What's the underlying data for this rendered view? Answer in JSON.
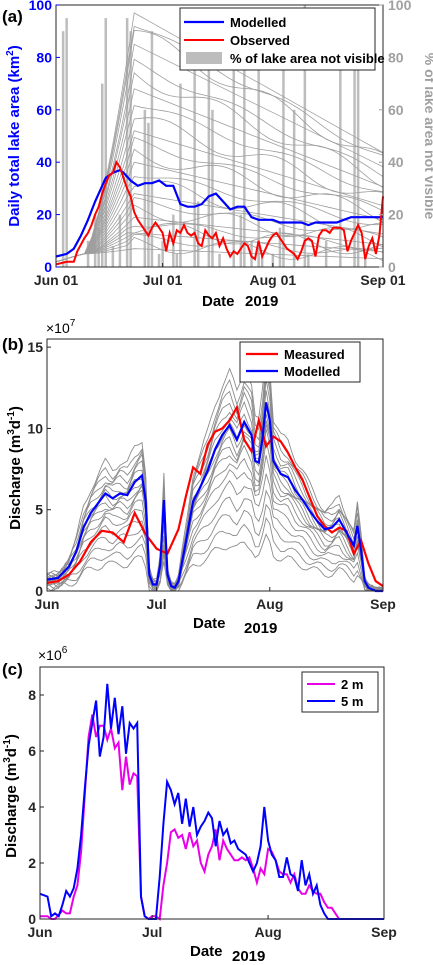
{
  "chart_data": [
    {
      "panel": "(a)",
      "type": "line",
      "xlabel": "Date",
      "xlabel_year": "2019",
      "ylabel": "Daily total lake area (km²)",
      "ylabel_base": "Daily total lake area (km",
      "ylabel_sup": "2",
      "ylabel_close": ")",
      "ylabel_right": "% of lake area not visible",
      "xlim": [
        0,
        92
      ],
      "ylim": [
        0,
        100
      ],
      "ylim_right": [
        0,
        100
      ],
      "xticks": [
        0,
        30,
        61,
        92
      ],
      "xticklabels": [
        "Jun 01",
        "Jul 01",
        "Aug 01",
        "Sep 01"
      ],
      "yticks": [
        0,
        20,
        40,
        60,
        80,
        100
      ],
      "yticklabels": [
        "0",
        "20",
        "40",
        "60",
        "80",
        "100"
      ],
      "yticks_right": [
        0,
        20,
        40,
        60,
        80,
        100
      ],
      "yticklabels_right": [
        "0",
        "20",
        "40",
        "60",
        "80",
        "100"
      ],
      "legend_position": "top-right",
      "colors": {
        "modelled": "#0000ff",
        "observed": "#ff0000",
        "bars": "#bdbdbd",
        "ensemble": "#9e9e9e",
        "left_axis": "#0000ff",
        "right_axis": "#a0a0a0"
      },
      "legend": [
        "Modelled",
        "Observed",
        "% of lake area not visible"
      ],
      "series": [
        {
          "name": "Modelled",
          "x": [
            0,
            3,
            5,
            7,
            9,
            11,
            13,
            14,
            16,
            18,
            19,
            21,
            23,
            25,
            27,
            29,
            31,
            33,
            35,
            37,
            39,
            41,
            43,
            45,
            47,
            49,
            51,
            53,
            55,
            57,
            59,
            61,
            63,
            65,
            67,
            69,
            71,
            73,
            75,
            77,
            79,
            81,
            83,
            85,
            87,
            89,
            91,
            92
          ],
          "y": [
            4,
            5,
            7,
            12,
            18,
            25,
            31,
            34,
            36,
            37,
            36,
            33,
            31,
            32,
            32,
            33,
            31,
            31,
            24,
            23,
            23,
            24,
            27,
            28,
            25,
            22,
            23,
            23,
            19,
            18,
            18,
            18,
            17,
            17,
            17,
            17,
            16,
            17,
            17,
            17,
            17,
            18,
            19,
            19,
            19,
            19,
            19,
            19
          ]
        },
        {
          "name": "Observed",
          "x": [
            0,
            3,
            5,
            6,
            8,
            9,
            10,
            11,
            12,
            13,
            14,
            15,
            16,
            17,
            18,
            19,
            20,
            21,
            22,
            23,
            24,
            25,
            26,
            27,
            28,
            29,
            30,
            31,
            32,
            33,
            34,
            35,
            36,
            37,
            38,
            39,
            40,
            41,
            42,
            43,
            44,
            45,
            46,
            47,
            48,
            49,
            50,
            51,
            52,
            53,
            54,
            55,
            56,
            57,
            58,
            59,
            60,
            61,
            62,
            63,
            64,
            65,
            66,
            67,
            68,
            69,
            70,
            71,
            72,
            73,
            74,
            75,
            76,
            77,
            78,
            79,
            80,
            81,
            82,
            83,
            84,
            85,
            86,
            87,
            88,
            89,
            90,
            91,
            92
          ],
          "y": [
            1,
            2,
            2,
            6,
            11,
            13,
            16,
            20,
            23,
            28,
            32,
            35,
            36,
            40,
            38,
            34,
            30,
            27,
            21,
            18,
            16,
            14,
            12,
            15,
            17,
            15,
            13,
            6,
            13,
            9,
            14,
            13,
            16,
            13,
            12,
            13,
            9,
            8,
            14,
            12,
            11,
            13,
            8,
            11,
            7,
            4,
            6,
            5,
            7,
            9,
            8,
            4,
            3,
            10,
            4,
            7,
            10,
            12,
            13,
            11,
            9,
            7,
            6,
            5,
            3,
            6,
            10,
            11,
            10,
            4,
            12,
            14,
            14,
            13,
            15,
            15,
            15,
            14,
            6,
            10,
            13,
            16,
            13,
            3,
            8,
            11,
            5,
            12,
            27
          ]
        }
      ],
      "ensemble_peaks": [
        97,
        93,
        90,
        85,
        78,
        74,
        68,
        63,
        57,
        52,
        48,
        44,
        40,
        36,
        32,
        28,
        25,
        22,
        19,
        17,
        15,
        13,
        11,
        9,
        7
      ],
      "bars_percent_not_visible": [
        0,
        0,
        90,
        95,
        0,
        0,
        0,
        0,
        0,
        10,
        0,
        20,
        15,
        70,
        95,
        0,
        8,
        0,
        20,
        0,
        95,
        90,
        0,
        0,
        0,
        60,
        55,
        90,
        0,
        5,
        10,
        0,
        0,
        20,
        5,
        70,
        0,
        0,
        0,
        90,
        25,
        0,
        0,
        85,
        60,
        0,
        5,
        0,
        0,
        0,
        95,
        0,
        20,
        85,
        0,
        10,
        0,
        90,
        5,
        0,
        0,
        5,
        0,
        15,
        80,
        0,
        0,
        60,
        0,
        0,
        100,
        5,
        0,
        0,
        0,
        0,
        10,
        0,
        0,
        0,
        90,
        0,
        0,
        0,
        95,
        98,
        0,
        5,
        0,
        0,
        0,
        0,
        0
      ]
    },
    {
      "panel": "(b)",
      "type": "line",
      "xlabel": "Date",
      "xlabel_year": "2019",
      "ylabel": "Discharge (m³d⁻¹)",
      "ylabel_parts": [
        "Discharge (m",
        "3",
        "d",
        "-1",
        ")"
      ],
      "exponent_label": "×10",
      "exponent_power": "7",
      "xlim": [
        0,
        92
      ],
      "ylim": [
        0,
        15.5
      ],
      "xticks": [
        0,
        30,
        61,
        92
      ],
      "xticklabels": [
        "Jun",
        "Jul",
        "Aug",
        "Sep"
      ],
      "yticks": [
        0,
        5,
        10,
        15
      ],
      "yticklabels": [
        "0",
        "5",
        "10",
        "15"
      ],
      "legend_position": "top-right",
      "colors": {
        "measured": "#ff0000",
        "modelled": "#0000ff",
        "ensemble": "#8c8c8c"
      },
      "legend": [
        "Measured",
        "Modelled"
      ],
      "series": [
        {
          "name": "Measured",
          "x": [
            0,
            3,
            6,
            9,
            12,
            15,
            18,
            21,
            24,
            27,
            30,
            33,
            36,
            38,
            40,
            42,
            44,
            46,
            48,
            50,
            52,
            54,
            56,
            58,
            60,
            62,
            64,
            66,
            68,
            70,
            72,
            74,
            76,
            78,
            80,
            82,
            84,
            86,
            88,
            90,
            92
          ],
          "y": [
            0.5,
            0.6,
            1.0,
            1.8,
            3.0,
            3.7,
            3.6,
            3.0,
            4.8,
            3.5,
            2.6,
            2.3,
            3.8,
            5.8,
            7.6,
            7.2,
            9.0,
            9.8,
            10.0,
            10.5,
            11.3,
            9.3,
            8.6,
            10.5,
            8.9,
            9.5,
            9.2,
            8.5,
            7.6,
            6.8,
            5.7,
            4.6,
            4.0,
            3.6,
            3.9,
            3.7,
            2.3,
            3.1,
            1.7,
            0.6,
            0.3
          ]
        },
        {
          "name": "Modelled",
          "x": [
            0,
            3,
            6,
            8,
            10,
            12,
            14,
            16,
            18,
            20,
            22,
            24,
            26,
            27,
            28,
            29,
            30,
            31,
            32,
            33,
            34,
            35,
            36,
            38,
            40,
            42,
            44,
            46,
            48,
            50,
            52,
            54,
            56,
            57,
            58,
            59,
            60,
            61,
            62,
            64,
            66,
            68,
            70,
            72,
            74,
            76,
            78,
            80,
            82,
            84,
            85,
            86,
            87,
            88,
            90,
            92
          ],
          "y": [
            0.7,
            0.8,
            1.5,
            2.4,
            3.9,
            4.8,
            5.4,
            6.0,
            5.7,
            6.0,
            5.9,
            6.7,
            7.1,
            5.6,
            1.0,
            0.4,
            0.4,
            1.6,
            5.6,
            1.0,
            0.3,
            0.2,
            0.6,
            3.0,
            5.5,
            6.4,
            7.4,
            8.7,
            9.6,
            10.2,
            9.3,
            10.4,
            9.6,
            8.0,
            7.9,
            9.4,
            11.6,
            10.5,
            8.0,
            7.2,
            7.0,
            6.2,
            5.6,
            4.9,
            4.3,
            3.8,
            3.9,
            4.4,
            3.6,
            2.8,
            4.0,
            2.5,
            0.6,
            0.2,
            0.0,
            0.0
          ]
        }
      ],
      "ensemble_scales": [
        1.32,
        1.25,
        1.2,
        1.15,
        1.1,
        1.05,
        1.0,
        0.96,
        0.92,
        0.88,
        0.84,
        0.78,
        0.72,
        0.64,
        0.55,
        0.46,
        0.37,
        0.28
      ]
    },
    {
      "panel": "(c)",
      "type": "line",
      "xlabel": "Date",
      "xlabel_year": "2019",
      "ylabel": "Discharge (m³d⁻¹)",
      "ylabel_parts": [
        "Discharge (m",
        "3",
        "d",
        "-1",
        ")"
      ],
      "exponent_label": "×10",
      "exponent_power": "6",
      "xlim": [
        0,
        92
      ],
      "ylim": [
        0,
        9
      ],
      "xticks": [
        0,
        30,
        61,
        92
      ],
      "xticklabels": [
        "Jun",
        "Jul",
        "Aug",
        "Sep"
      ],
      "yticks": [
        0,
        2,
        4,
        6,
        8
      ],
      "yticklabels": [
        "0",
        "2",
        "4",
        "6",
        "8"
      ],
      "legend_position": "top-right",
      "colors": {
        "2 m": "#e800e8",
        "5 m": "#0000ff"
      },
      "legend": [
        "2 m",
        "5 m"
      ],
      "series": [
        {
          "name": "2 m",
          "x": [
            0,
            2,
            3,
            4,
            6,
            7,
            8,
            9,
            10,
            11,
            12,
            13,
            14,
            15,
            16,
            17,
            18,
            19,
            20,
            21,
            22,
            23,
            24,
            25,
            26,
            27,
            28,
            29,
            30,
            31,
            32,
            33,
            34,
            35,
            36,
            37,
            38,
            39,
            40,
            41,
            42,
            43,
            44,
            45,
            46,
            47,
            48,
            49,
            50,
            51,
            52,
            53,
            54,
            55,
            56,
            57,
            58,
            59,
            60,
            61,
            62,
            63,
            64,
            65,
            66,
            67,
            68,
            69,
            70,
            71,
            72,
            73,
            74,
            75,
            76,
            77,
            78,
            79,
            80,
            81,
            82,
            83,
            84,
            85,
            86,
            87,
            88,
            90,
            92
          ],
          "y": [
            0.1,
            0.1,
            0.0,
            0.0,
            0.3,
            0.2,
            0.2,
            0.8,
            1.2,
            2.4,
            4.5,
            6.5,
            7.3,
            6.5,
            6.9,
            6.9,
            6.4,
            6.8,
            6.1,
            6.3,
            4.6,
            5.8,
            4.8,
            5.2,
            5.1,
            0.8,
            0.1,
            0.0,
            0.1,
            0.1,
            0.0,
            1.2,
            2.0,
            3.1,
            3.2,
            2.9,
            3.0,
            2.5,
            3.1,
            2.6,
            2.8,
            2.0,
            1.7,
            2.3,
            2.6,
            3.2,
            2.1,
            2.8,
            2.5,
            2.3,
            2.1,
            2.1,
            2.2,
            2.1,
            2.2,
            1.8,
            1.3,
            1.8,
            1.6,
            2.5,
            2.4,
            2.1,
            1.7,
            1.6,
            1.6,
            1.3,
            1.6,
            1.1,
            0.9,
            0.9,
            1.2,
            1.0,
            0.9,
            0.9,
            0.6,
            0.4,
            0.4,
            0.2,
            0.0,
            0.0,
            0.0,
            0.0,
            0.0,
            0.0,
            0.0,
            0.0,
            0.0,
            0.0,
            0.0
          ]
        },
        {
          "name": "5 m",
          "x": [
            0,
            2,
            3,
            4,
            5,
            6,
            7,
            8,
            9,
            10,
            11,
            12,
            13,
            14,
            15,
            16,
            17,
            18,
            19,
            20,
            21,
            22,
            23,
            24,
            25,
            26,
            27,
            28,
            29,
            30,
            31,
            32,
            33,
            34,
            35,
            36,
            37,
            38,
            39,
            40,
            41,
            42,
            43,
            44,
            45,
            46,
            47,
            48,
            49,
            50,
            51,
            52,
            53,
            54,
            55,
            56,
            57,
            58,
            59,
            60,
            61,
            62,
            63,
            64,
            65,
            66,
            67,
            68,
            69,
            70,
            71,
            72,
            73,
            74,
            75,
            76,
            77,
            78,
            79,
            80,
            81,
            82,
            83,
            84,
            85,
            86,
            88,
            90,
            92
          ],
          "y": [
            0.9,
            0.8,
            0.1,
            0.2,
            0.1,
            0.5,
            1.0,
            0.8,
            1.1,
            1.8,
            3.0,
            4.7,
            6.2,
            7.0,
            7.8,
            5.8,
            6.5,
            8.4,
            6.8,
            7.9,
            6.6,
            7.6,
            5.9,
            7.0,
            6.8,
            7.0,
            0.8,
            0.1,
            0.0,
            0.0,
            0.0,
            1.5,
            3.4,
            4.9,
            4.6,
            4.1,
            4.5,
            3.4,
            4.3,
            3.3,
            4.0,
            3.0,
            3.3,
            3.5,
            3.8,
            3.6,
            2.6,
            3.5,
            3.0,
            3.2,
            2.7,
            2.8,
            2.5,
            2.4,
            2.3,
            2.0,
            1.7,
            2.0,
            2.6,
            4.0,
            2.8,
            2.3,
            2.1,
            1.5,
            1.5,
            2.2,
            1.6,
            1.5,
            1.0,
            2.1,
            1.2,
            1.6,
            0.9,
            1.2,
            0.5,
            0.2,
            0.0,
            0.0,
            0.0,
            0.0,
            0.0,
            0.0,
            0.0,
            0.0,
            0.0,
            0.0,
            0.0,
            0.0,
            0.0
          ]
        }
      ]
    }
  ]
}
